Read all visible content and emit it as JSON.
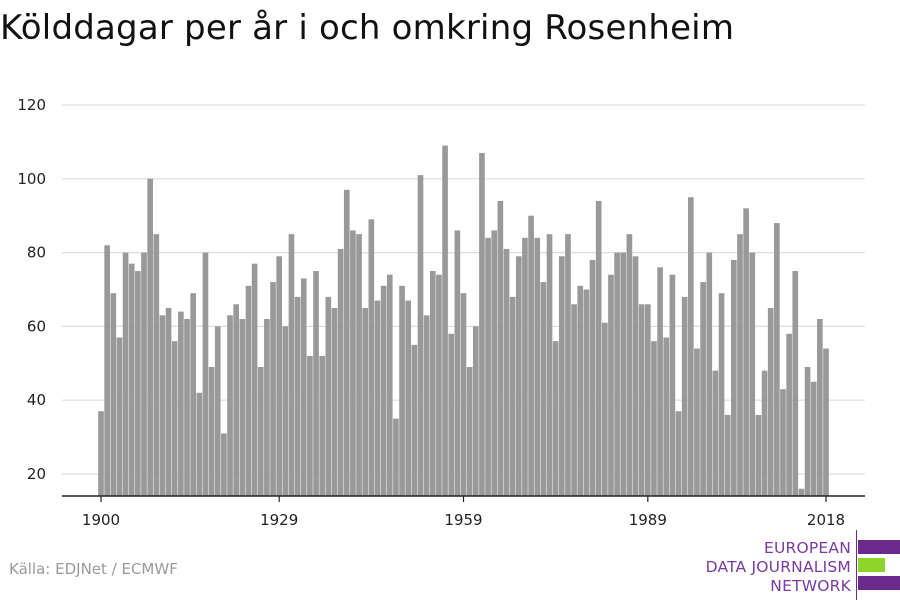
{
  "title": "Kölddagar per år i och omkring Rosenheim",
  "source": "Källa: EDJNet / ECMWF",
  "logo": {
    "lines": [
      "EUROPEAN",
      "DATA JOURNALISM",
      "NETWORK"
    ],
    "colors": {
      "text": "#7b3aa0",
      "bar_purple": "#6a2a8c",
      "bar_green": "#8fd42a"
    }
  },
  "colors": {
    "bar": "#999999",
    "grid": "#dddddd",
    "axis": "#222222"
  },
  "chart_data": {
    "type": "bar",
    "title": "Kölddagar per år i och omkring Rosenheim",
    "xlabel": "",
    "ylabel": "",
    "ylim": [
      13,
      122
    ],
    "yticks": [
      20,
      40,
      60,
      80,
      100,
      120
    ],
    "xticks": [
      1900,
      1929,
      1959,
      1989,
      2018
    ],
    "grid": true,
    "x": [
      1900,
      1901,
      1902,
      1903,
      1904,
      1905,
      1906,
      1907,
      1908,
      1909,
      1910,
      1911,
      1912,
      1913,
      1914,
      1915,
      1916,
      1917,
      1918,
      1919,
      1920,
      1921,
      1922,
      1923,
      1924,
      1925,
      1926,
      1927,
      1928,
      1929,
      1930,
      1931,
      1932,
      1933,
      1934,
      1935,
      1936,
      1937,
      1938,
      1939,
      1940,
      1941,
      1942,
      1943,
      1944,
      1945,
      1946,
      1947,
      1948,
      1949,
      1950,
      1951,
      1952,
      1953,
      1954,
      1955,
      1956,
      1957,
      1958,
      1959,
      1960,
      1961,
      1962,
      1963,
      1964,
      1965,
      1966,
      1967,
      1968,
      1969,
      1970,
      1971,
      1972,
      1973,
      1974,
      1975,
      1976,
      1977,
      1978,
      1979,
      1980,
      1981,
      1982,
      1983,
      1984,
      1985,
      1986,
      1987,
      1988,
      1989,
      1990,
      1991,
      1992,
      1993,
      1994,
      1995,
      1996,
      1997,
      1998,
      1999,
      2000,
      2001,
      2002,
      2003,
      2004,
      2005,
      2006,
      2007,
      2008,
      2009,
      2010,
      2011,
      2012,
      2013,
      2014,
      2015,
      2016,
      2017,
      2018
    ],
    "values": [
      37,
      82,
      69,
      57,
      80,
      77,
      75,
      80,
      100,
      85,
      63,
      65,
      56,
      64,
      62,
      69,
      42,
      80,
      49,
      60,
      31,
      63,
      66,
      62,
      71,
      77,
      49,
      62,
      72,
      79,
      60,
      85,
      68,
      73,
      52,
      75,
      52,
      68,
      65,
      81,
      97,
      86,
      85,
      65,
      89,
      67,
      71,
      74,
      35,
      71,
      67,
      55,
      101,
      63,
      75,
      74,
      109,
      58,
      86,
      69,
      49,
      60,
      107,
      84,
      86,
      94,
      81,
      68,
      79,
      84,
      90,
      84,
      72,
      85,
      56,
      79,
      85,
      66,
      71,
      70,
      78,
      94,
      61,
      74,
      80,
      80,
      85,
      79,
      66,
      66,
      56,
      76,
      57,
      74,
      37,
      68,
      95,
      54,
      72,
      80,
      48,
      69,
      36,
      78,
      85,
      92,
      80,
      36,
      48,
      65,
      88,
      43,
      58,
      75,
      16,
      49,
      45,
      62,
      54
    ]
  }
}
